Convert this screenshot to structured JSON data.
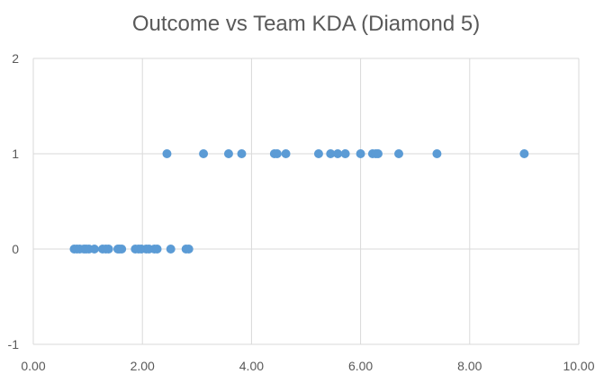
{
  "chart_data": {
    "type": "scatter",
    "title": "Outcome vs Team KDA (Diamond 5)",
    "xlabel": "",
    "ylabel": "",
    "xlim": [
      0,
      10
    ],
    "ylim": [
      -1,
      2
    ],
    "x_ticks": [
      "0.00",
      "2.00",
      "4.00",
      "6.00",
      "8.00",
      "10.00"
    ],
    "y_ticks": [
      "-1",
      "0",
      "1",
      "2"
    ],
    "grid": true,
    "legend": "none",
    "marker_color": "#5B9BD5",
    "series": [
      {
        "points": [
          [
            0.75,
            0
          ],
          [
            0.8,
            0
          ],
          [
            0.85,
            0
          ],
          [
            0.93,
            0
          ],
          [
            0.97,
            0
          ],
          [
            1.02,
            0
          ],
          [
            1.12,
            0
          ],
          [
            1.27,
            0
          ],
          [
            1.33,
            0
          ],
          [
            1.38,
            0
          ],
          [
            1.55,
            0
          ],
          [
            1.58,
            0
          ],
          [
            1.62,
            0
          ],
          [
            1.87,
            0
          ],
          [
            1.93,
            0
          ],
          [
            1.98,
            0
          ],
          [
            2.07,
            0
          ],
          [
            2.12,
            0
          ],
          [
            2.22,
            0
          ],
          [
            2.27,
            0
          ],
          [
            2.52,
            0
          ],
          [
            2.8,
            0
          ],
          [
            2.85,
            0
          ],
          [
            2.45,
            1
          ],
          [
            3.12,
            1
          ],
          [
            3.58,
            1
          ],
          [
            3.82,
            1
          ],
          [
            4.42,
            1
          ],
          [
            4.47,
            1
          ],
          [
            4.63,
            1
          ],
          [
            5.23,
            1
          ],
          [
            5.45,
            1
          ],
          [
            5.58,
            1
          ],
          [
            5.72,
            1
          ],
          [
            6.0,
            1
          ],
          [
            6.22,
            1
          ],
          [
            6.28,
            1
          ],
          [
            6.32,
            1
          ],
          [
            6.7,
            1
          ],
          [
            7.4,
            1
          ],
          [
            9.0,
            1
          ]
        ]
      }
    ]
  }
}
